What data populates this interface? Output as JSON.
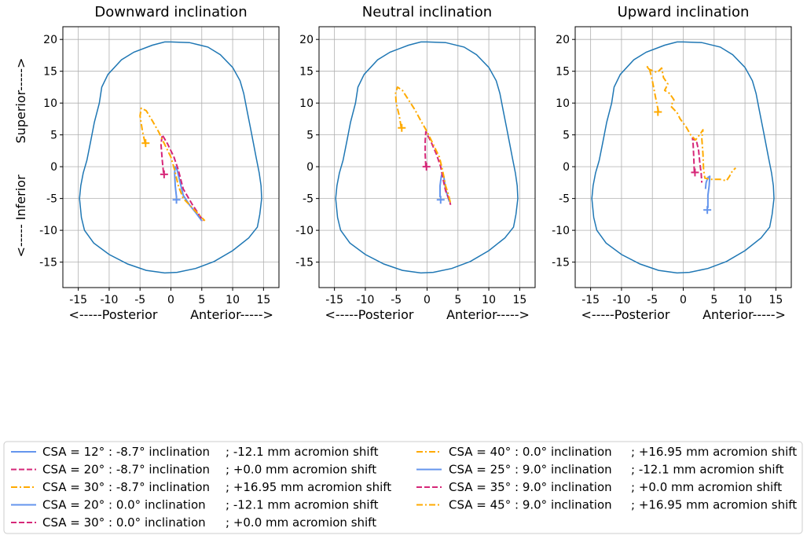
{
  "chart_data": {
    "type": "line",
    "ylabel_superior": "Superior----->",
    "ylabel_inferior": "<----- Inferior",
    "xlabel_left": "<-----Posterior",
    "xlabel_right": "Anterior----->",
    "xlim": [
      -17.5,
      17.5
    ],
    "ylim": [
      -19,
      22
    ],
    "xticks": [
      -15,
      -10,
      -5,
      0,
      5,
      10,
      15
    ],
    "yticks": [
      20,
      15,
      10,
      5,
      0,
      -5,
      -10,
      -15
    ],
    "grid": true,
    "outline_color": "#1f77b4",
    "outline": [
      [
        0,
        19.6
      ],
      [
        3,
        19.5
      ],
      [
        6,
        18.8
      ],
      [
        8,
        17.6
      ],
      [
        10,
        15.6
      ],
      [
        11.2,
        13.5
      ],
      [
        11.8,
        11.5
      ],
      [
        12.3,
        9
      ],
      [
        12.9,
        6
      ],
      [
        13.4,
        3.5
      ],
      [
        13.8,
        1.5
      ],
      [
        14.3,
        -1
      ],
      [
        14.6,
        -3
      ],
      [
        14.7,
        -5
      ],
      [
        14.4,
        -7.5
      ],
      [
        14,
        -9.5
      ],
      [
        12.6,
        -11.2
      ],
      [
        10,
        -13.2
      ],
      [
        7,
        -14.9
      ],
      [
        4,
        -16
      ],
      [
        1,
        -16.6
      ],
      [
        -1,
        -16.7
      ],
      [
        -4,
        -16.3
      ],
      [
        -7,
        -15.3
      ],
      [
        -10,
        -13.8
      ],
      [
        -12.5,
        -12
      ],
      [
        -14,
        -10
      ],
      [
        -14.5,
        -8
      ],
      [
        -14.8,
        -5
      ],
      [
        -14.6,
        -3
      ],
      [
        -14.2,
        -1
      ],
      [
        -13.6,
        1
      ],
      [
        -13,
        4
      ],
      [
        -12.4,
        7
      ],
      [
        -11.6,
        10
      ],
      [
        -11.2,
        12.5
      ],
      [
        -10.2,
        14.5
      ],
      [
        -8,
        16.8
      ],
      [
        -6,
        18
      ],
      [
        -3,
        19.1
      ],
      [
        -1,
        19.6
      ],
      [
        0,
        19.6
      ]
    ],
    "legend": [
      {
        "label": "CSA = 12° : -8.7° inclination",
        "shift": "; -12.1 mm acromion shift",
        "style": "solid",
        "color": "#6495ed"
      },
      {
        "label": "CSA = 20° : -8.7° inclination",
        "shift": "; +0.0 mm acromion shift",
        "style": "dashed",
        "color": "#d62778"
      },
      {
        "label": "CSA = 30° : -8.7° inclination",
        "shift": "; +16.95 mm acromion shift",
        "style": "dashdot",
        "color": "#ffaa00"
      },
      {
        "label": "CSA = 20° : 0.0° inclination",
        "shift": "; -12.1 mm acromion shift",
        "style": "solid",
        "color": "#6495ed"
      },
      {
        "label": "CSA = 30° : 0.0° inclination",
        "shift": "; +0.0 mm acromion shift",
        "style": "dashed",
        "color": "#d62778"
      },
      {
        "label": "CSA = 40° : 0.0° inclination",
        "shift": "; +16.95 mm acromion shift",
        "style": "dashdot",
        "color": "#ffaa00"
      },
      {
        "label": "CSA = 25° : 9.0° inclination",
        "shift": "; -12.1 mm acromion shift",
        "style": "solid",
        "color": "#6495ed"
      },
      {
        "label": "CSA = 35° : 9.0° inclination",
        "shift": "; +0.0 mm acromion shift",
        "style": "dashed",
        "color": "#d62778"
      },
      {
        "label": "CSA = 45° : 9.0° inclination",
        "shift": "; +16.95 mm acromion shift",
        "style": "dashdot",
        "color": "#ffaa00"
      }
    ],
    "panels": [
      {
        "title": "Downward inclination",
        "series": [
          {
            "style": "solid",
            "color": "#6495ed",
            "points": [
              [
                0.9,
                -4.8
              ],
              [
                0.7,
                -3
              ],
              [
                0.6,
                -1
              ],
              [
                0.7,
                0
              ],
              [
                1,
                -0.5
              ],
              [
                1.5,
                -2.5
              ],
              [
                2,
                -4.5
              ],
              [
                3,
                -6
              ],
              [
                4,
                -7.2
              ],
              [
                5,
                -8.5
              ]
            ],
            "start": [
              0.9,
              -5.2
            ]
          },
          {
            "style": "dashed",
            "color": "#d62778",
            "points": [
              [
                -1.2,
                -1
              ],
              [
                -1.4,
                1
              ],
              [
                -1.6,
                3.5
              ],
              [
                -1.4,
                5
              ],
              [
                -0.5,
                3.5
              ],
              [
                0.5,
                1.5
              ],
              [
                1.2,
                -0.5
              ],
              [
                2,
                -3.5
              ],
              [
                3.5,
                -6
              ],
              [
                5.2,
                -8.5
              ]
            ],
            "start": [
              -1.1,
              -1.2
            ]
          },
          {
            "style": "dashdot",
            "color": "#ffaa00",
            "points": [
              [
                -4.2,
                3.8
              ],
              [
                -4.6,
                5.5
              ],
              [
                -5,
                8
              ],
              [
                -4.8,
                9.2
              ],
              [
                -4,
                8.8
              ],
              [
                -3,
                7.2
              ],
              [
                -2,
                5.5
              ],
              [
                -1,
                3.5
              ],
              [
                0,
                1.5
              ],
              [
                0.6,
                -0.5
              ],
              [
                1.2,
                -3
              ],
              [
                2,
                -5
              ],
              [
                3.5,
                -6.5
              ],
              [
                4.5,
                -7.5
              ],
              [
                5.5,
                -8.5
              ]
            ],
            "start": [
              -4.1,
              3.7
            ]
          }
        ]
      },
      {
        "title": "Neutral inclination",
        "series": [
          {
            "style": "solid",
            "color": "#6495ed",
            "points": [
              [
                2.1,
                -4.8
              ],
              [
                2.1,
                -3
              ],
              [
                2.3,
                -1.5
              ],
              [
                2.4,
                -1.2
              ],
              [
                2.7,
                -1.5
              ],
              [
                3,
                -3.5
              ],
              [
                3.3,
                -4.5
              ],
              [
                3.6,
                -5.5
              ]
            ],
            "start": [
              2.2,
              -5.2
            ]
          },
          {
            "style": "dashed",
            "color": "#d62778",
            "points": [
              [
                -0.2,
                0
              ],
              [
                -0.3,
                2
              ],
              [
                -0.3,
                4
              ],
              [
                -0.2,
                5.5
              ],
              [
                0.6,
                4
              ],
              [
                1.5,
                2
              ],
              [
                2.2,
                0
              ],
              [
                2.6,
                -2
              ],
              [
                3,
                -3.8
              ],
              [
                3.6,
                -5.2
              ],
              [
                3.8,
                -6
              ]
            ],
            "start": [
              -0.1,
              0
            ]
          },
          {
            "style": "dashdot",
            "color": "#ffaa00",
            "points": [
              [
                -4.2,
                6.2
              ],
              [
                -4.5,
                8
              ],
              [
                -5,
                10
              ],
              [
                -5.1,
                11.5
              ],
              [
                -4.8,
                12.5
              ],
              [
                -4,
                12
              ],
              [
                -3,
                10.5
              ],
              [
                -2,
                9
              ],
              [
                -1,
                7.2
              ],
              [
                0,
                5.5
              ],
              [
                1,
                3.5
              ],
              [
                2,
                1.5
              ],
              [
                2.5,
                -0.5
              ],
              [
                3,
                -3
              ],
              [
                3.5,
                -4.5
              ],
              [
                3.8,
                -5.8
              ]
            ],
            "start": [
              -4.1,
              6.1
            ]
          }
        ]
      },
      {
        "title": "Upward inclination",
        "series": [
          {
            "style": "solid",
            "color": "#6495ed",
            "points": [
              [
                3.6,
                -3.5
              ],
              [
                3.7,
                -2.5
              ],
              [
                4,
                -1.7
              ],
              [
                4.3,
                -1.5
              ],
              [
                4.2,
                -3
              ],
              [
                4,
                -4.5
              ],
              [
                4,
                -6.5
              ]
            ],
            "start": [
              3.9,
              -6.8
            ]
          },
          {
            "style": "dashed",
            "color": "#d62778",
            "points": [
              [
                1.8,
                -0.8
              ],
              [
                1.7,
                1.5
              ],
              [
                1.6,
                3.5
              ],
              [
                1.5,
                4.5
              ],
              [
                2.2,
                3.8
              ],
              [
                2.5,
                2.5
              ],
              [
                2.7,
                0.5
              ],
              [
                2.9,
                -1
              ],
              [
                3,
                -2.5
              ]
            ],
            "start": [
              1.9,
              -0.9
            ]
          },
          {
            "style": "dashdot",
            "color": "#ffaa00",
            "points": [
              [
                -4,
                8.6
              ],
              [
                -4.5,
                11
              ],
              [
                -5,
                13.5
              ],
              [
                -5.5,
                15.5
              ],
              [
                -6,
                15.8
              ],
              [
                -5.5,
                15.3
              ],
              [
                -4.2,
                14.8
              ],
              [
                -3.5,
                15.5
              ],
              [
                -3.2,
                14
              ],
              [
                -2.5,
                13
              ],
              [
                -3,
                12
              ],
              [
                -2.2,
                11.5
              ],
              [
                -1.5,
                10.5
              ],
              [
                -2,
                9.5
              ],
              [
                -1,
                8.5
              ],
              [
                -0.5,
                7.5
              ],
              [
                0.5,
                6.2
              ],
              [
                1.2,
                5
              ],
              [
                2,
                4.2
              ],
              [
                2.8,
                5.2
              ],
              [
                3.2,
                5.8
              ],
              [
                3,
                4.5
              ],
              [
                3.2,
                2
              ],
              [
                3.3,
                -0.5
              ],
              [
                3.5,
                -1.8
              ],
              [
                4.5,
                -2
              ],
              [
                6,
                -2
              ],
              [
                7,
                -2.2
              ],
              [
                7.5,
                -1.5
              ],
              [
                8,
                -0.6
              ],
              [
                8.5,
                -0.2
              ]
            ],
            "start": [
              -4.1,
              8.6
            ]
          }
        ]
      }
    ]
  }
}
